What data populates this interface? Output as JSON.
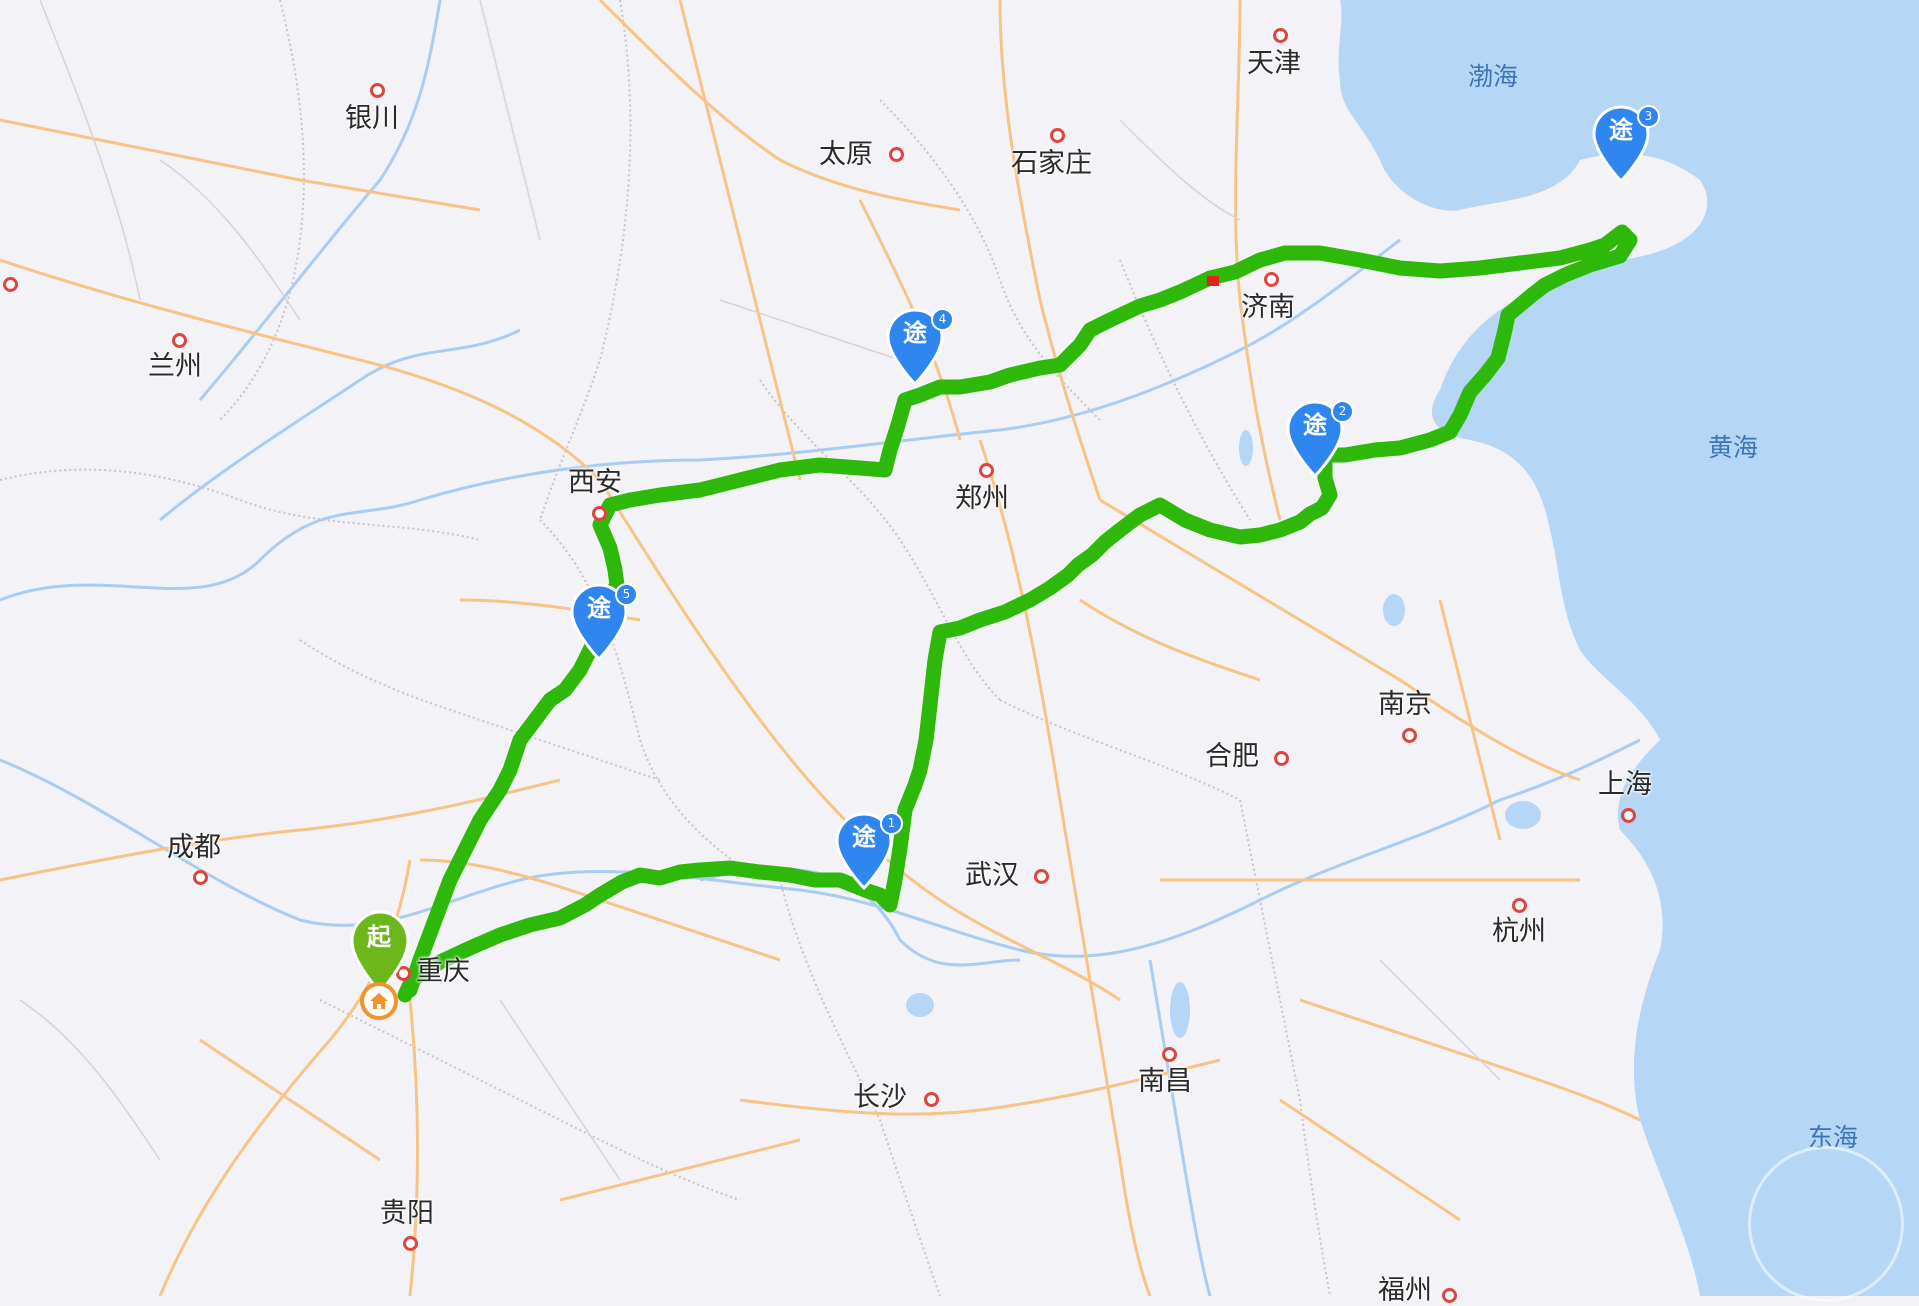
{
  "colors": {
    "land": "#f3f2f6",
    "sea": "#b5d7f5",
    "river": "#a9cdf2",
    "road": "#f7c486",
    "route": "#2eb90a",
    "waypoint": "#2e86ee",
    "start": "#6cb81c",
    "city_dot": "#e0443e",
    "home": "#f2932b"
  },
  "cities": [
    {
      "id": "tianjin",
      "name": "天津"
    },
    {
      "id": "yinchuan",
      "name": "银川"
    },
    {
      "id": "taiyuan",
      "name": "太原"
    },
    {
      "id": "shijiazhuang",
      "name": "石家庄"
    },
    {
      "id": "lanzhou",
      "name": "兰州"
    },
    {
      "id": "jinan",
      "name": "济南"
    },
    {
      "id": "xian",
      "name": "西安"
    },
    {
      "id": "zhengzhou",
      "name": "郑州"
    },
    {
      "id": "nanjing",
      "name": "南京"
    },
    {
      "id": "hefei",
      "name": "合肥"
    },
    {
      "id": "shanghai",
      "name": "上海"
    },
    {
      "id": "chengdu",
      "name": "成都"
    },
    {
      "id": "wuhan",
      "name": "武汉"
    },
    {
      "id": "chongqing",
      "name": "重庆"
    },
    {
      "id": "hangzhou",
      "name": "杭州"
    },
    {
      "id": "changsha",
      "name": "长沙"
    },
    {
      "id": "nanchang",
      "name": "南昌"
    },
    {
      "id": "guiyang",
      "name": "贵阳"
    },
    {
      "id": "fuzhou",
      "name": "福州"
    }
  ],
  "seas": [
    {
      "id": "bohai",
      "name": "渤海"
    },
    {
      "id": "huanghai",
      "name": "黄海"
    },
    {
      "id": "donghai",
      "name": "东海"
    }
  ],
  "waypoints": [
    {
      "label": "途",
      "number": "1"
    },
    {
      "label": "途",
      "number": "2"
    },
    {
      "label": "途",
      "number": "3"
    },
    {
      "label": "途",
      "number": "4"
    },
    {
      "label": "途",
      "number": "5"
    }
  ],
  "start": {
    "label": "起"
  }
}
